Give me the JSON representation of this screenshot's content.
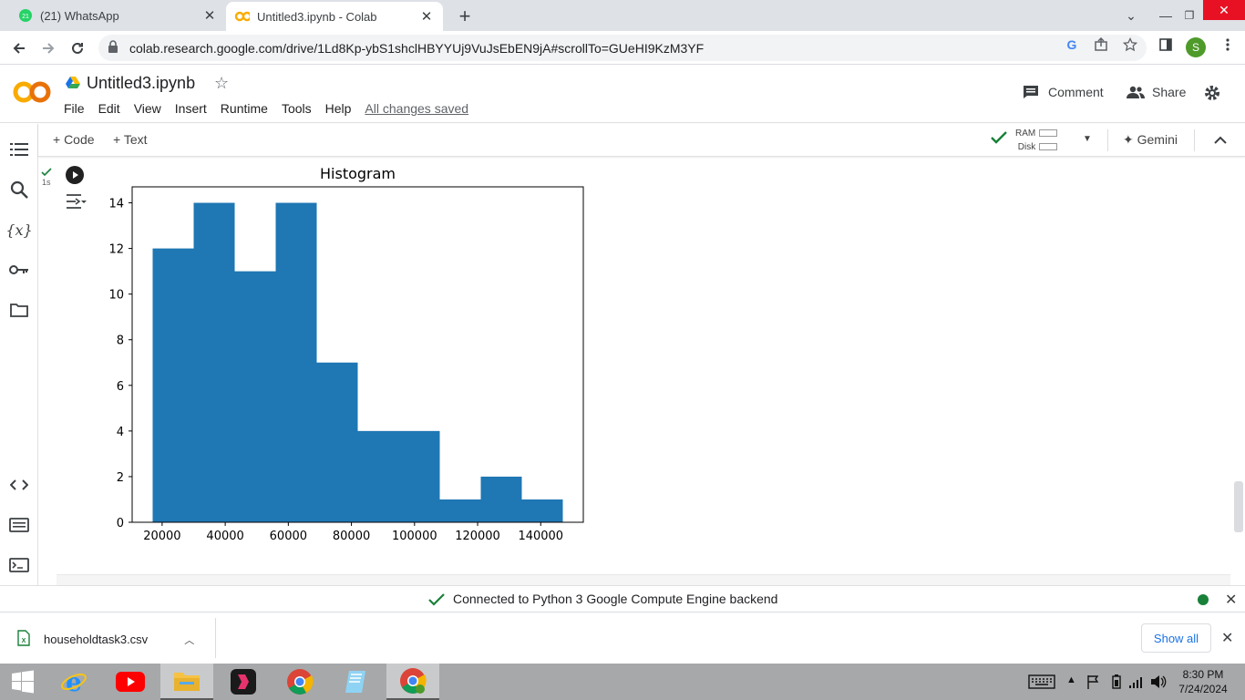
{
  "browser": {
    "tabs": [
      {
        "title": "(21) WhatsApp",
        "badge": "21",
        "active": false
      },
      {
        "title": "Untitled3.ipynb - Colab",
        "active": true
      }
    ],
    "url": "colab.research.google.com/drive/1Ld8Kp-ybS1shclHBYYUj9VuJsEbEN9jA#scrollTo=GUeHI9KzM3YF",
    "profile_initial": "S"
  },
  "colab": {
    "logo_text": "CO",
    "notebook_title": "Untitled3.ipynb",
    "menu": [
      "File",
      "Edit",
      "View",
      "Insert",
      "Runtime",
      "Tools",
      "Help"
    ],
    "save_status": "All changes saved",
    "comment_label": "Comment",
    "share_label": "Share",
    "add_code_label": "+ Code",
    "add_text_label": "+ Text",
    "ram_label": "RAM",
    "disk_label": "Disk",
    "gemini_label": "Gemini",
    "exec_time": "1s"
  },
  "chart_data": {
    "type": "bar",
    "title": "Histogram",
    "xlabel": "",
    "ylabel": "",
    "bins": [
      {
        "x0": 17000,
        "x1": 30000,
        "count": 12
      },
      {
        "x0": 30000,
        "x1": 43000,
        "count": 14
      },
      {
        "x0": 43000,
        "x1": 56000,
        "count": 11
      },
      {
        "x0": 56000,
        "x1": 69000,
        "count": 14
      },
      {
        "x0": 69000,
        "x1": 82000,
        "count": 7
      },
      {
        "x0": 82000,
        "x1": 95000,
        "count": 4
      },
      {
        "x0": 95000,
        "x1": 108000,
        "count": 4
      },
      {
        "x0": 108000,
        "x1": 121000,
        "count": 1
      },
      {
        "x0": 121000,
        "x1": 134000,
        "count": 2
      },
      {
        "x0": 134000,
        "x1": 147000,
        "count": 1
      }
    ],
    "xlim": [
      10500,
      153500
    ],
    "ylim": [
      0,
      14.7
    ],
    "xticks": [
      20000,
      40000,
      60000,
      80000,
      100000,
      120000,
      140000
    ],
    "yticks": [
      0,
      2,
      4,
      6,
      8,
      10,
      12,
      14
    ],
    "bar_color": "#1f77b4",
    "grid": false
  },
  "status": {
    "text": "Connected to Python 3 Google Compute Engine backend"
  },
  "downloads": {
    "file_name": "householdtask3.csv",
    "show_all_label": "Show all"
  },
  "taskbar": {
    "time": "8:30 PM",
    "date": "7/24/2024"
  }
}
